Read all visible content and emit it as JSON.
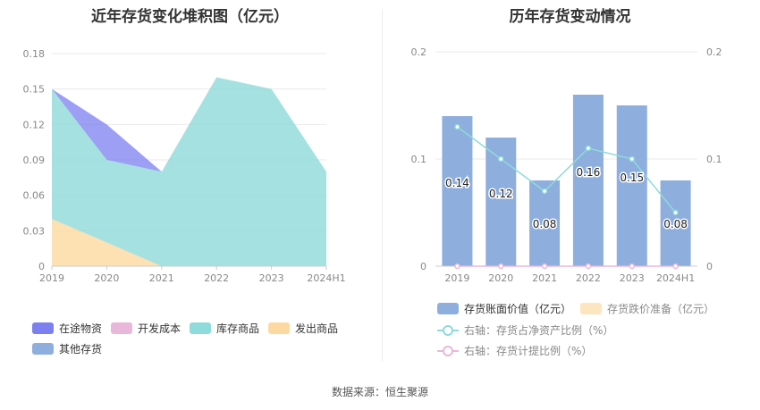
{
  "left_chart": {
    "title": "近年存货变化堆积图（亿元）",
    "legend": [
      {
        "label": "在途物资",
        "color": "#7b7ff0"
      },
      {
        "label": "开发成本",
        "color": "#e9b7da"
      },
      {
        "label": "库存商品",
        "color": "#8fdada"
      },
      {
        "label": "发出商品",
        "color": "#fcd9a0"
      },
      {
        "label": "其他存货",
        "color": "#8eaedd"
      }
    ]
  },
  "right_chart": {
    "title": "历年存货变动情况",
    "legend": [
      {
        "label": "存货账面价值（亿元）",
        "color": "#8eaedd",
        "kind": "box"
      },
      {
        "label": "存货跌价准备（亿元）",
        "color": "#fde5c0",
        "kind": "box"
      },
      {
        "label": "右轴：存货占净资产比例（%）",
        "color": "#8fdada",
        "kind": "line"
      },
      {
        "label": "右轴：存货计提比例（%）",
        "color": "#e9b7da",
        "kind": "line"
      }
    ]
  },
  "chart_data": [
    {
      "type": "area",
      "stacked": true,
      "title": "近年存货变化堆积图（亿元）",
      "categories": [
        "2019",
        "2020",
        "2021",
        "2022",
        "2023",
        "2024H1"
      ],
      "ylim": [
        0,
        0.18
      ],
      "yticks": [
        "0",
        "0.03",
        "0.06",
        "0.09",
        "0.12",
        "0.15",
        "0.18"
      ],
      "grid": true,
      "legend_position": "bottom",
      "series": [
        {
          "name": "发出商品",
          "color": "#fcd9a0",
          "values": [
            0.04,
            0.02,
            0,
            0,
            0,
            0
          ]
        },
        {
          "name": "库存商品",
          "color": "#8fdada",
          "values": [
            0.11,
            0.07,
            0.08,
            0.16,
            0.15,
            0.08
          ]
        },
        {
          "name": "在途物资",
          "color": "#7b7ff0",
          "values": [
            0,
            0.03,
            0,
            0,
            0,
            0
          ]
        },
        {
          "name": "开发成本",
          "color": "#e9b7da",
          "values": [
            0,
            0,
            0,
            0,
            0,
            0
          ]
        },
        {
          "name": "其他存货",
          "color": "#8eaedd",
          "values": [
            0,
            0,
            0,
            0,
            0,
            0
          ]
        }
      ]
    },
    {
      "type": "bar",
      "title": "历年存货变动情况",
      "categories": [
        "2019",
        "2020",
        "2021",
        "2022",
        "2023",
        "2024H1"
      ],
      "ylim": [
        0,
        0.2
      ],
      "yticks": [
        "0",
        "0.1",
        "0.2"
      ],
      "y2lim": [
        0,
        0.2
      ],
      "y2ticks": [
        "0",
        "0.1",
        "0.2"
      ],
      "grid": true,
      "legend_position": "bottom",
      "series": [
        {
          "name": "存货账面价值（亿元）",
          "type": "bar",
          "axis": "left",
          "color": "#8eaedd",
          "values": [
            0.14,
            0.12,
            0.08,
            0.16,
            0.15,
            0.08
          ],
          "labels": [
            "0.14",
            "0.12",
            "0.08",
            "0.16",
            "0.15",
            "0.08"
          ]
        },
        {
          "name": "存货跌价准备（亿元）",
          "type": "bar",
          "axis": "left",
          "color": "#fde5c0",
          "values": [
            0,
            0,
            0,
            0,
            0,
            0
          ]
        },
        {
          "name": "右轴：存货占净资产比例（%）",
          "type": "line",
          "axis": "right",
          "color": "#8fdada",
          "values": [
            0.13,
            0.1,
            0.07,
            0.11,
            0.1,
            0.05
          ]
        },
        {
          "name": "右轴：存货计提比例（%）",
          "type": "line",
          "axis": "right",
          "color": "#e9b7da",
          "values": [
            0,
            0,
            0,
            0,
            0,
            0
          ]
        }
      ]
    }
  ],
  "footer": {
    "source": "数据来源：恒生聚源"
  }
}
